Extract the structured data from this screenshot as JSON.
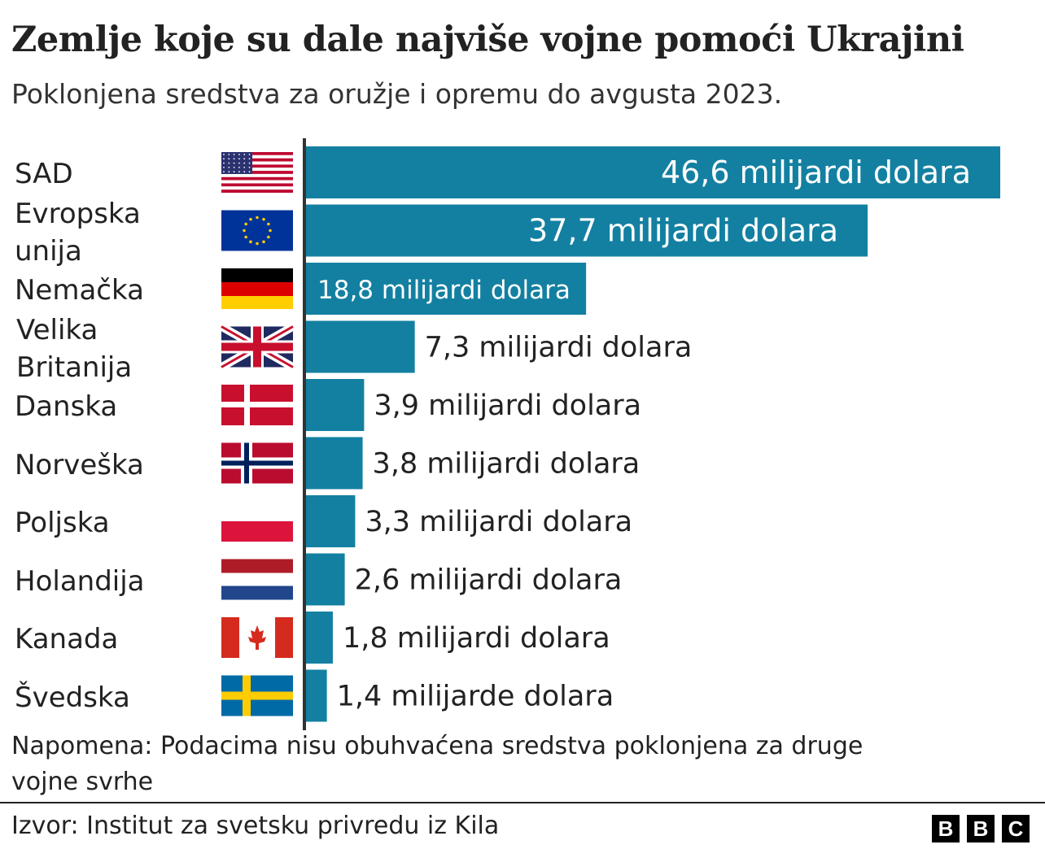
{
  "title": "Zemlje koje su dale najviše vojne pomoći Ukrajini",
  "subtitle": "Poklonjena sredstva za oružje i opremu do avgusta 2023.",
  "note": [
    "Napomena: Podacima nisu obuhvaćena sredstva poklonjena za druge",
    "vojne svrhe"
  ],
  "source": "Izvor: Institut za svetsku privredu iz Kila",
  "logo": [
    "B",
    "B",
    "C"
  ],
  "colors": {
    "bar": "#1380A1",
    "axis": "#333333",
    "label_inside": "#ffffff",
    "label_outside": "#222222"
  },
  "chart_data": {
    "type": "bar",
    "orientation": "horizontal",
    "title": "Zemlje koje su dale najviše vojne pomoći Ukrajini",
    "subtitle": "Poklonjena sredstva za oružje i opremu do avgusta 2023.",
    "categories": [
      [
        "SAD"
      ],
      [
        "Evropska",
        "unija"
      ],
      [
        "Nemačka"
      ],
      [
        "Velika",
        "Britanija"
      ],
      [
        "Danska"
      ],
      [
        "Norveška"
      ],
      [
        "Poljska"
      ],
      [
        "Holandija"
      ],
      [
        "Kanada"
      ],
      [
        "Švedska"
      ]
    ],
    "flags": [
      "us",
      "eu",
      "de",
      "gb",
      "dk",
      "no",
      "pl",
      "nl",
      "ca",
      "se"
    ],
    "values": [
      46.6,
      37.7,
      18.8,
      7.3,
      3.9,
      3.8,
      3.3,
      2.6,
      1.8,
      1.4
    ],
    "data_labels": [
      "46,6 milijardi dolara",
      "37,7 milijardi dolara",
      "18,8 milijardi dolara",
      "7,3 milijardi dolara",
      "3,9 milijardi dolara",
      "3,8 milijardi dolara",
      "3,3 milijardi dolara",
      "2,6 milijardi dolara",
      "1,8 milijardi dolara",
      "1,4 milijarde dolara"
    ],
    "unit": "milijardi dolara",
    "grid": false,
    "legend": "none"
  }
}
